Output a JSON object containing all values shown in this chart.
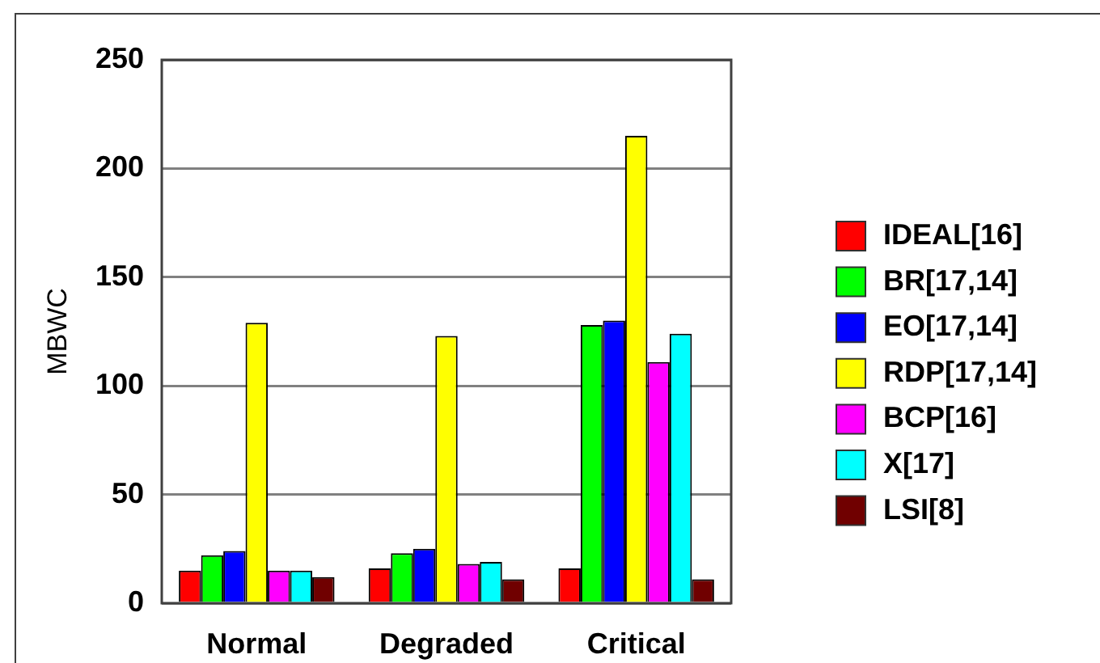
{
  "chart_data": {
    "type": "bar",
    "categories": [
      "Normal",
      "Degraded",
      "Critical"
    ],
    "ylabel": "MBWC",
    "ylim": [
      0,
      250
    ],
    "yticks": [
      0,
      50,
      100,
      150,
      200,
      250
    ],
    "grid": "y",
    "legend": "right",
    "series": [
      {
        "name": "IDEAL[16]",
        "color": "#ff0000",
        "values": [
          15,
          16,
          16
        ]
      },
      {
        "name": "BR[17,14]",
        "color": "#00ff00",
        "values": [
          22,
          23,
          128
        ]
      },
      {
        "name": "EO[17,14]",
        "color": "#0000ff",
        "values": [
          24,
          25,
          130
        ]
      },
      {
        "name": "RDP[17,14]",
        "color": "#ffff00",
        "values": [
          129,
          123,
          215
        ]
      },
      {
        "name": "BCP[16]",
        "color": "#ff00ff",
        "values": [
          15,
          18,
          111
        ]
      },
      {
        "name": "X[17]",
        "color": "#00ffff",
        "values": [
          15,
          19,
          124
        ]
      },
      {
        "name": "LSI[8]",
        "color": "#700000",
        "values": [
          12,
          11,
          11
        ]
      }
    ]
  }
}
